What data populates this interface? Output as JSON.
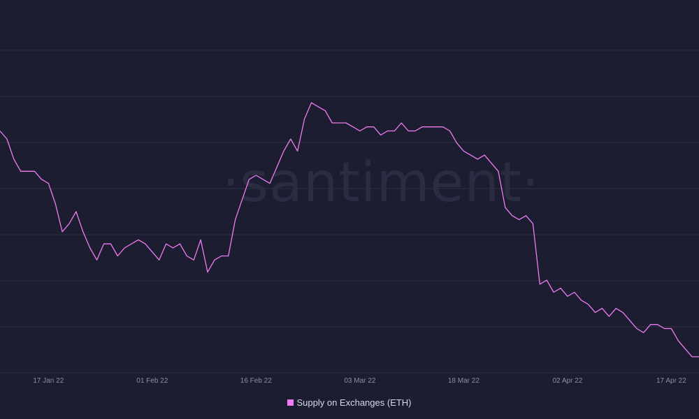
{
  "watermark": "·santiment·",
  "colors": {
    "background": "#1c1d30",
    "series": "#f07cf2",
    "grid": "#2c2e45"
  },
  "chart_data": {
    "type": "line",
    "title": "",
    "xlabel": "",
    "ylabel": "",
    "x_start": "2022-01-10",
    "x_end": "2022-04-21",
    "x_ticks": [
      "17 Jan 22",
      "01 Feb 22",
      "16 Feb 22",
      "03 Mar 22",
      "18 Mar 22",
      "02 Apr 22",
      "17 Apr 22"
    ],
    "grid": true,
    "legend": "bottom-center",
    "series": [
      {
        "name": "Supply on Exchanges (ETH)",
        "color": "#f07cf2",
        "values": [
          0.8,
          0.78,
          0.73,
          0.7,
          0.7,
          0.7,
          0.68,
          0.67,
          0.62,
          0.55,
          0.57,
          0.6,
          0.55,
          0.51,
          0.48,
          0.52,
          0.52,
          0.49,
          0.51,
          0.52,
          0.53,
          0.52,
          0.5,
          0.48,
          0.52,
          0.51,
          0.52,
          0.49,
          0.48,
          0.53,
          0.45,
          0.48,
          0.49,
          0.49,
          0.58,
          0.63,
          0.68,
          0.69,
          0.68,
          0.67,
          0.71,
          0.75,
          0.78,
          0.75,
          0.83,
          0.87,
          0.86,
          0.85,
          0.82,
          0.82,
          0.82,
          0.81,
          0.8,
          0.81,
          0.81,
          0.79,
          0.8,
          0.8,
          0.82,
          0.8,
          0.8,
          0.81,
          0.81,
          0.81,
          0.81,
          0.8,
          0.77,
          0.75,
          0.74,
          0.73,
          0.74,
          0.72,
          0.7,
          0.61,
          0.59,
          0.58,
          0.59,
          0.57,
          0.42,
          0.43,
          0.4,
          0.41,
          0.39,
          0.4,
          0.38,
          0.37,
          0.35,
          0.36,
          0.34,
          0.36,
          0.35,
          0.33,
          0.31,
          0.3,
          0.32,
          0.32,
          0.31,
          0.31,
          0.28,
          0.26,
          0.24,
          0.24
        ]
      }
    ],
    "ylim": [
      0.2,
      1.0
    ]
  }
}
